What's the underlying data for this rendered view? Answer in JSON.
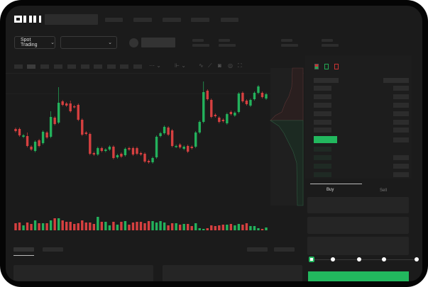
{
  "header": {
    "logo": "OKX"
  },
  "toolbar": {
    "market_select": "Spot Trading",
    "chevron": "⌄",
    "pair_chevron": "⌄"
  },
  "order_form": {
    "buy_tab": "Buy",
    "sell_tab": "Sell",
    "slider_value_percent": 0,
    "slider_marks": [
      0,
      25,
      50,
      75,
      100
    ]
  },
  "colors": {
    "up": "#23b25c",
    "down": "#d64040",
    "background": "#1b1b1b",
    "frame": "#050505"
  },
  "chart_data": {
    "type": "candlestick",
    "grid": false,
    "candles": [
      [
        58,
        55
      ],
      [
        58,
        49
      ],
      [
        47,
        49
      ],
      [
        48,
        34,
        53
      ],
      [
        33,
        29
      ],
      [
        27,
        40
      ],
      [
        42,
        34
      ],
      [
        38,
        54
      ],
      [
        53,
        46
      ],
      [
        47,
        75,
        83
      ],
      [
        74,
        65
      ],
      [
        67,
        95,
        117
      ],
      [
        97,
        92
      ],
      [
        94,
        91
      ],
      [
        94,
        83,
        98
      ],
      [
        90,
        89
      ],
      [
        92,
        71
      ],
      [
        71,
        50
      ],
      [
        53,
        51
      ],
      [
        51,
        23
      ],
      [
        24,
        22
      ],
      [
        22,
        31
      ],
      [
        31,
        27
      ],
      [
        27,
        29
      ],
      [
        29,
        33
      ],
      [
        33,
        17
      ],
      [
        18,
        21
      ],
      [
        23,
        19
      ],
      [
        21,
        30
      ],
      [
        31,
        29
      ],
      [
        31,
        22
      ],
      [
        31,
        23
      ],
      [
        24,
        22
      ],
      [
        23,
        12
      ],
      [
        13,
        11
      ],
      [
        11,
        17
      ],
      [
        18,
        47
      ],
      [
        48,
        52
      ],
      [
        52,
        61
      ],
      [
        60,
        50
      ],
      [
        56,
        34
      ],
      [
        33,
        34
      ],
      [
        36,
        32
      ],
      [
        30,
        33
      ],
      [
        34,
        26
      ],
      [
        33,
        31
      ],
      [
        33,
        53
      ],
      [
        53,
        68
      ],
      [
        68,
        110,
        125
      ],
      [
        112,
        100
      ],
      [
        99,
        75
      ],
      [
        78,
        76
      ],
      [
        74,
        68
      ],
      [
        71,
        69
      ],
      [
        66,
        79
      ],
      [
        82,
        79
      ],
      [
        77,
        81
      ],
      [
        82,
        108
      ],
      [
        109,
        97
      ],
      [
        98,
        93
      ],
      [
        91,
        99
      ],
      [
        100,
        109
      ],
      [
        109,
        118
      ],
      [
        109,
        103
      ],
      [
        101,
        107
      ]
    ],
    "volume": [
      10,
      11,
      7,
      11,
      9,
      14,
      10,
      10,
      10,
      14,
      17,
      17,
      14,
      12,
      12,
      9,
      10,
      14,
      11,
      11,
      9,
      19,
      12,
      12,
      7,
      12,
      8,
      12,
      13,
      8,
      11,
      12,
      12,
      10,
      13,
      13,
      11,
      13,
      11,
      7,
      10,
      10,
      8,
      9,
      9,
      6,
      10,
      3,
      2,
      3,
      7,
      6,
      7,
      8,
      8,
      9,
      7,
      9,
      8,
      10,
      6,
      6,
      3,
      2,
      4
    ]
  }
}
